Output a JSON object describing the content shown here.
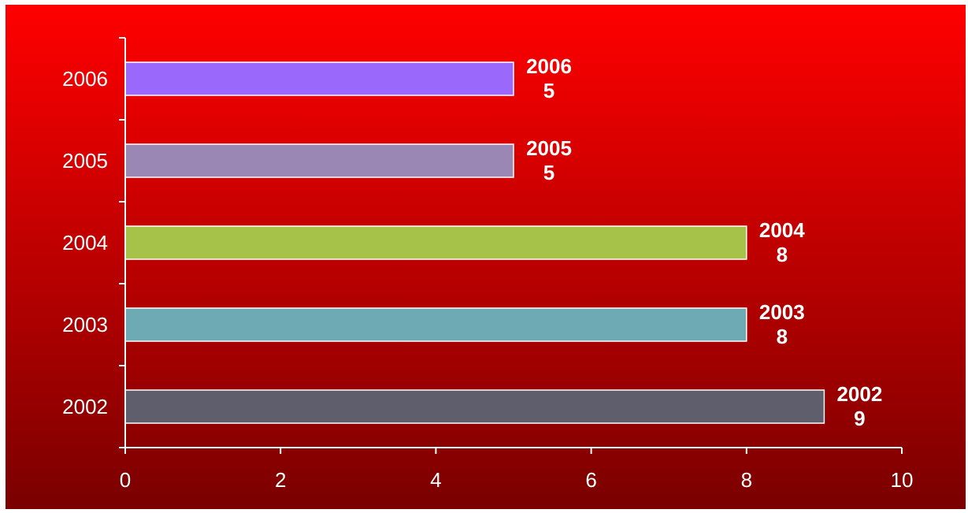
{
  "chart_data": {
    "type": "bar",
    "orientation": "horizontal",
    "categories": [
      "2002",
      "2003",
      "2004",
      "2005",
      "2006"
    ],
    "values": [
      9,
      8,
      8,
      5,
      5
    ],
    "bar_colors": [
      "#5e5e6c",
      "#6eaab4",
      "#a6c248",
      "#9a87b4",
      "#9a68fb"
    ],
    "data_labels": [
      {
        "category": "2002",
        "value": "9"
      },
      {
        "category": "2003",
        "value": "8"
      },
      {
        "category": "2004",
        "value": "8"
      },
      {
        "category": "2005",
        "value": "5"
      },
      {
        "category": "2006",
        "value": "5"
      }
    ],
    "x_ticks": [
      "0",
      "2",
      "4",
      "6",
      "8",
      "10"
    ],
    "xlim": [
      0,
      10
    ],
    "title": "",
    "xlabel": "",
    "ylabel": "",
    "grid": false,
    "legend": "none",
    "background_gradient": [
      "#ff0000",
      "#7a0000"
    ],
    "axis_color": "#ffffff",
    "text_color": "#ffffff"
  }
}
